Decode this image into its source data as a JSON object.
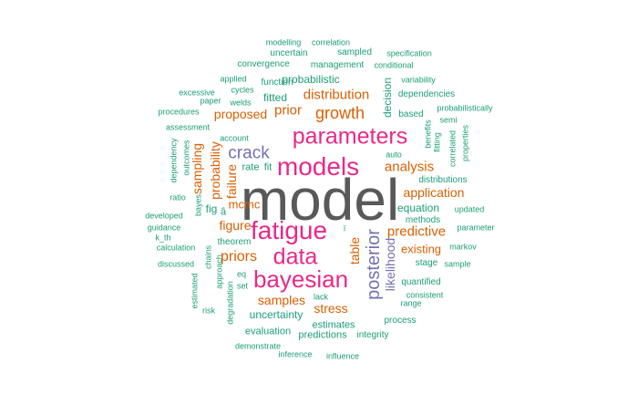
{
  "colors": {
    "gray": "#595959",
    "pink": "#e7298a",
    "purple": "#7570b3",
    "orange": "#d95f02",
    "teal": "#1b9e77"
  },
  "words": [
    {
      "text": "model",
      "color": "gray"
    },
    {
      "text": "fatigue",
      "color": "pink"
    },
    {
      "text": "models",
      "color": "pink"
    },
    {
      "text": "parameters",
      "color": "pink"
    },
    {
      "text": "bayesian",
      "color": "pink"
    },
    {
      "text": "data",
      "color": "pink"
    },
    {
      "text": "posterior",
      "color": "purple"
    },
    {
      "text": "crack",
      "color": "purple"
    },
    {
      "text": "growth",
      "color": "orange"
    },
    {
      "text": "distribution",
      "color": "orange"
    },
    {
      "text": "prior",
      "color": "orange"
    },
    {
      "text": "proposed",
      "color": "orange"
    },
    {
      "text": "analysis",
      "color": "orange"
    },
    {
      "text": "application",
      "color": "orange"
    },
    {
      "text": "predictive",
      "color": "orange"
    },
    {
      "text": "priors",
      "color": "orange"
    },
    {
      "text": "figure",
      "color": "orange"
    },
    {
      "text": "samples",
      "color": "orange"
    },
    {
      "text": "stress",
      "color": "orange"
    },
    {
      "text": "table",
      "color": "orange"
    },
    {
      "text": "failure",
      "color": "orange"
    },
    {
      "text": "mcmc",
      "color": "orange"
    },
    {
      "text": "existing",
      "color": "orange"
    },
    {
      "text": "sampling",
      "color": "orange"
    },
    {
      "text": "probability",
      "color": "orange"
    },
    {
      "text": "likelihood",
      "color": "purple"
    },
    {
      "text": "uncertainty",
      "color": "teal"
    },
    {
      "text": "probabilistic",
      "color": "teal"
    },
    {
      "text": "estimates",
      "color": "teal"
    },
    {
      "text": "equation",
      "color": "teal"
    },
    {
      "text": "decision",
      "color": "teal"
    },
    {
      "text": "fitted",
      "color": "teal"
    },
    {
      "text": "rate",
      "color": "teal"
    },
    {
      "text": "fit",
      "color": "teal"
    },
    {
      "text": "fig",
      "color": "teal"
    },
    {
      "text": "â",
      "color": "teal"
    },
    {
      "text": "ï",
      "color": "teal"
    },
    {
      "text": "methods",
      "color": "teal"
    },
    {
      "text": "theorem",
      "color": "teal"
    },
    {
      "text": "function",
      "color": "teal"
    },
    {
      "text": "stage",
      "color": "teal"
    },
    {
      "text": "quantified",
      "color": "teal"
    },
    {
      "text": "distributions",
      "color": "teal"
    },
    {
      "text": "dependencies",
      "color": "teal"
    },
    {
      "text": "convergence",
      "color": "teal"
    },
    {
      "text": "management",
      "color": "teal"
    },
    {
      "text": "uncertain",
      "color": "teal"
    },
    {
      "text": "sampled",
      "color": "teal"
    },
    {
      "text": "modelling",
      "color": "teal"
    },
    {
      "text": "correlation",
      "color": "teal"
    },
    {
      "text": "specification",
      "color": "teal"
    },
    {
      "text": "conditional",
      "color": "teal"
    },
    {
      "text": "applied",
      "color": "teal"
    },
    {
      "text": "cycles",
      "color": "teal"
    },
    {
      "text": "excessive",
      "color": "teal"
    },
    {
      "text": "paper",
      "color": "teal"
    },
    {
      "text": "welds",
      "color": "teal"
    },
    {
      "text": "variability",
      "color": "teal"
    },
    {
      "text": "probabilistically",
      "color": "teal"
    },
    {
      "text": "semi",
      "color": "teal"
    },
    {
      "text": "based",
      "color": "teal"
    },
    {
      "text": "procedures",
      "color": "teal"
    },
    {
      "text": "assessment",
      "color": "teal"
    },
    {
      "text": "account",
      "color": "teal"
    },
    {
      "text": "benefits",
      "color": "teal"
    },
    {
      "text": "fitting",
      "color": "teal"
    },
    {
      "text": "correlated",
      "color": "teal"
    },
    {
      "text": "properties",
      "color": "teal"
    },
    {
      "text": "dependency",
      "color": "teal"
    },
    {
      "text": "outcomes",
      "color": "teal"
    },
    {
      "text": "auto",
      "color": "teal"
    },
    {
      "text": "bayes",
      "color": "teal"
    },
    {
      "text": "ratio",
      "color": "teal"
    },
    {
      "text": "developed",
      "color": "teal"
    },
    {
      "text": "guidance",
      "color": "teal"
    },
    {
      "text": "updated",
      "color": "teal"
    },
    {
      "text": "parameter",
      "color": "teal"
    },
    {
      "text": "k_th",
      "color": "teal"
    },
    {
      "text": "calculation",
      "color": "teal"
    },
    {
      "text": "discussed",
      "color": "teal"
    },
    {
      "text": "chains",
      "color": "teal"
    },
    {
      "text": "approach",
      "color": "teal"
    },
    {
      "text": "markov",
      "color": "teal"
    },
    {
      "text": "sample",
      "color": "teal"
    },
    {
      "text": "eq",
      "color": "teal"
    },
    {
      "text": "set",
      "color": "teal"
    },
    {
      "text": "estimated",
      "color": "teal"
    },
    {
      "text": "risk",
      "color": "teal"
    },
    {
      "text": "degradation",
      "color": "teal"
    },
    {
      "text": "lack",
      "color": "teal"
    },
    {
      "text": "consistent",
      "color": "teal"
    },
    {
      "text": "range",
      "color": "teal"
    },
    {
      "text": "process",
      "color": "teal"
    },
    {
      "text": "evaluation",
      "color": "teal"
    },
    {
      "text": "predictions",
      "color": "teal"
    },
    {
      "text": "integrity",
      "color": "teal"
    },
    {
      "text": "demonstrate",
      "color": "teal"
    },
    {
      "text": "inference",
      "color": "teal"
    },
    {
      "text": "influence",
      "color": "teal"
    }
  ]
}
